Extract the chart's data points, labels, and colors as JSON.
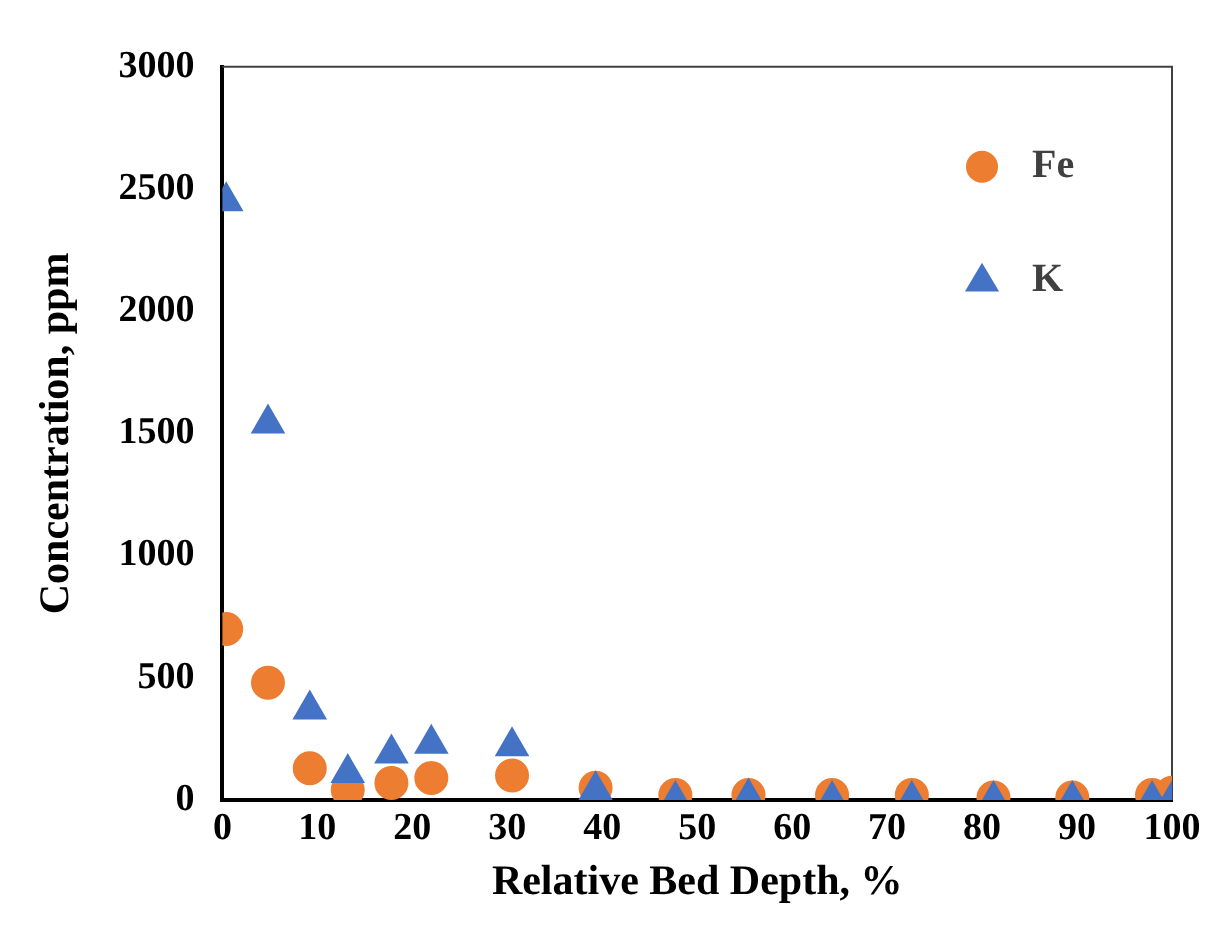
{
  "chart_data": {
    "type": "scatter",
    "xlabel": "Relative Bed Depth, %",
    "ylabel": "Concentration, ppm",
    "xlim": [
      0,
      100
    ],
    "xticks": [
      0,
      10,
      20,
      30,
      40,
      50,
      60,
      70,
      80,
      90,
      100
    ],
    "ylim": [
      0,
      3000
    ],
    "yticks": [
      0,
      500,
      1000,
      1500,
      2000,
      2500,
      3000
    ],
    "grid": false,
    "legend": "top right",
    "series": [
      {
        "name": "Fe",
        "color": "#ed7d31",
        "marker": "circle",
        "x": [
          0.4,
          4.8,
          9.2,
          13.2,
          17.8,
          22,
          30.5,
          39.3,
          47.7,
          55.4,
          64.2,
          72.6,
          81.2,
          89.5,
          97.9,
          100
        ],
        "values": [
          700,
          480,
          130,
          40,
          70,
          90,
          100,
          50,
          20,
          20,
          20,
          20,
          10,
          10,
          20,
          30
        ]
      },
      {
        "name": "K",
        "color": "#4472c4",
        "marker": "triangle",
        "x": [
          0.4,
          4.8,
          9.2,
          13.2,
          17.8,
          22,
          30.5,
          39.3,
          47.7,
          55.4,
          64.2,
          72.6,
          81.2,
          89.5,
          97.9,
          100
        ],
        "values": [
          2450,
          1540,
          370,
          110,
          190,
          230,
          220,
          40,
          0,
          10,
          0,
          0,
          0,
          0,
          0,
          0
        ]
      }
    ]
  }
}
